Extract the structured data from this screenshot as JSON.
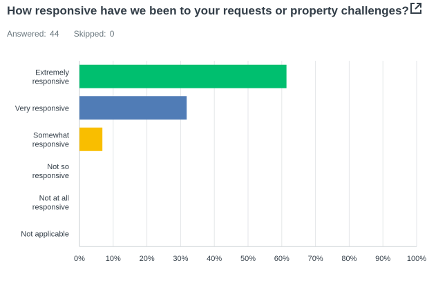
{
  "question": {
    "title": "How responsive have we been to your requests or property challenges?",
    "answered_label": "Answered:",
    "answered_value": "44",
    "skipped_label": "Skipped:",
    "skipped_value": "0",
    "export_icon": "external-link-icon"
  },
  "colors": {
    "grid": "#e3e6e8",
    "axis": "#c7cdd1",
    "text": "#333e48"
  },
  "chart_data": {
    "type": "bar",
    "orientation": "horizontal",
    "categories": [
      [
        "Extremely",
        "responsive"
      ],
      [
        "Very responsive"
      ],
      [
        "Somewhat",
        "responsive"
      ],
      [
        "Not so",
        "responsive"
      ],
      [
        "Not at all",
        "responsive"
      ],
      [
        "Not applicable"
      ]
    ],
    "values": [
      61.4,
      31.8,
      6.8,
      0,
      0,
      0
    ],
    "bar_colors": [
      "#00bf6f",
      "#507cb6",
      "#f9be00",
      "#6bc8cd",
      "#7d68b3",
      "#b67db3"
    ],
    "xlim": [
      0,
      100
    ],
    "x_ticks": [
      "0%",
      "10%",
      "20%",
      "30%",
      "40%",
      "50%",
      "60%",
      "70%",
      "80%",
      "90%",
      "100%"
    ],
    "grid": true
  }
}
